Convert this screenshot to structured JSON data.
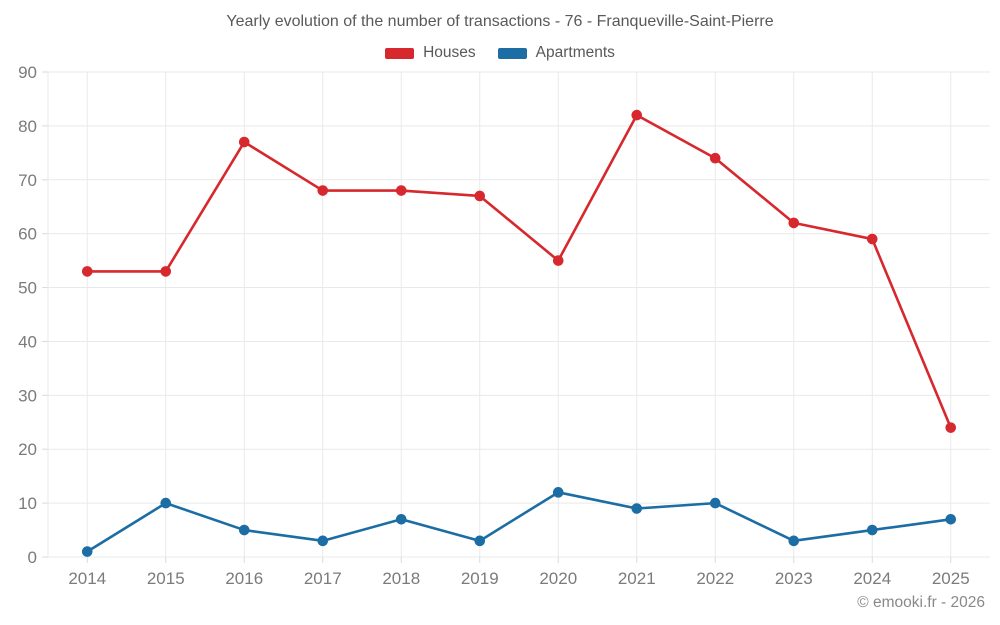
{
  "title": "Yearly evolution of the number of transactions - 76 - Franqueville-Saint-Pierre",
  "footer": "© emooki.fr - 2026",
  "colors": {
    "houses": "#d6282d",
    "apartments": "#1b6da3",
    "grid": "#e9e9e9",
    "tick": "#dadada",
    "axis_text": "#7b7b7b",
    "title_text": "#595959",
    "footer_text": "#898989",
    "background": "#ffffff"
  },
  "chart_data": {
    "type": "line",
    "title": "Yearly evolution of the number of transactions - 76 - Franqueville-Saint-Pierre",
    "categories": [
      "2014",
      "2015",
      "2016",
      "2017",
      "2018",
      "2019",
      "2020",
      "2021",
      "2022",
      "2023",
      "2024",
      "2025"
    ],
    "series": [
      {
        "name": "Houses",
        "color": "#d6282d",
        "values": [
          53,
          53,
          77,
          68,
          68,
          67,
          55,
          82,
          74,
          62,
          59,
          24
        ]
      },
      {
        "name": "Apartments",
        "color": "#1b6da3",
        "values": [
          1,
          10,
          5,
          3,
          7,
          3,
          12,
          9,
          10,
          3,
          5,
          7
        ]
      }
    ],
    "xlabel": "",
    "ylabel": "",
    "ylim": [
      0,
      90
    ],
    "yticks": [
      0,
      10,
      20,
      30,
      40,
      50,
      60,
      70,
      80,
      90
    ],
    "grid": true,
    "legend_position": "top",
    "marker": "circle"
  }
}
